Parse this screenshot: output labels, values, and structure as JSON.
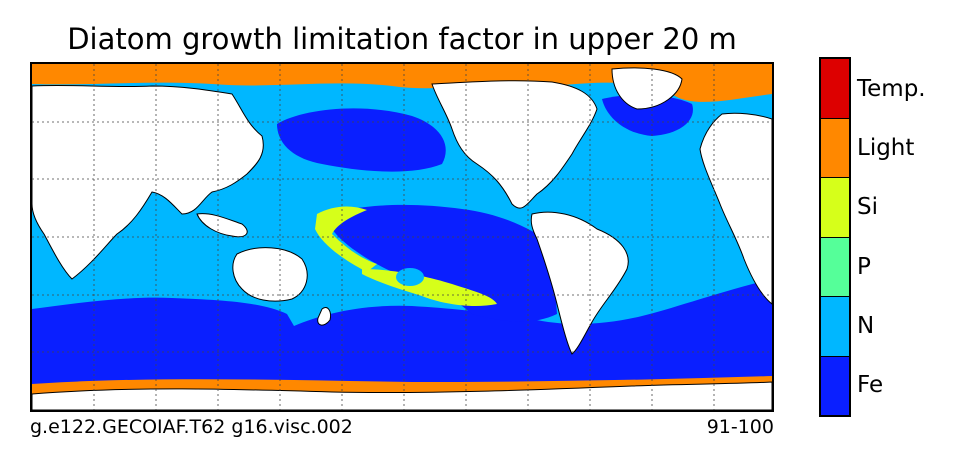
{
  "title": "Diatom growth limitation factor in upper 20 m",
  "footer": {
    "left": "g.e122.GECOIAF.T62 g16.visc.002",
    "right": "91-100"
  },
  "legend": {
    "categories": [
      {
        "label": "Temp.",
        "color": "#dd0000"
      },
      {
        "label": "Light",
        "color": "#ff8800"
      },
      {
        "label": "Si",
        "color": "#d6ff1a"
      },
      {
        "label": "P",
        "color": "#55ff99"
      },
      {
        "label": "N",
        "color": "#00b7ff"
      },
      {
        "label": "Fe",
        "color": "#0a1fff"
      }
    ]
  },
  "map": {
    "projection": "cylindrical, Pacific-centered",
    "land_color": "#ffffff",
    "coastline_color": "#000000",
    "gridlines": "dotted"
  }
}
